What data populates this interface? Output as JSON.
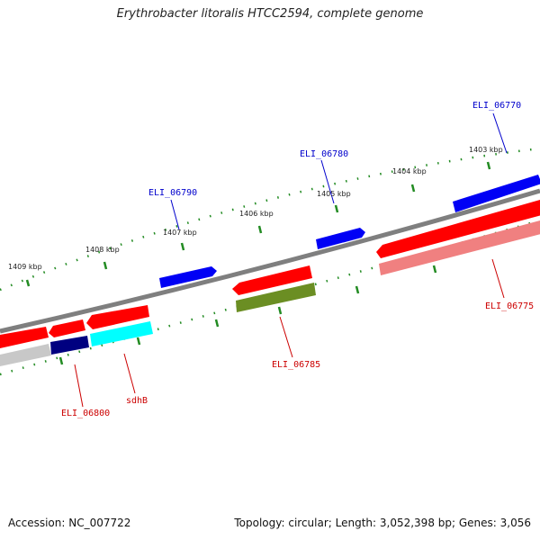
{
  "title": "Erythrobacter litoralis HTCC2594, complete genome",
  "accession": "Accession: NC_007722",
  "summary": "Topology: circular; Length: 3,052,398 bp; Genes: 3,056",
  "colors": {
    "backbone": "#808080",
    "forward_cds": "#0000ff",
    "reverse_cds": "#ff0000",
    "reverse_gene": "#f08080",
    "highlight_olive": "#6b8e23",
    "highlight_cyan": "#00ffff",
    "highlight_navy": "#000080",
    "highlight_grey": "#c0c0c0",
    "ticks": "#228b22",
    "forward_label": "#0000cc",
    "reverse_label": "#cc0000"
  },
  "scale_labels": [
    "1409 kbp",
    "1408 kbp",
    "1407 kbp",
    "1406 kbp",
    "1405 kbp",
    "1404 kbp",
    "1403 kbp"
  ],
  "gene_labels": {
    "forward": [
      "ELI_06790",
      "ELI_06780",
      "ELI_06770"
    ],
    "reverse": [
      "ELI_06800",
      "sdhB",
      "ELI_06785",
      "ELI_06775"
    ]
  }
}
